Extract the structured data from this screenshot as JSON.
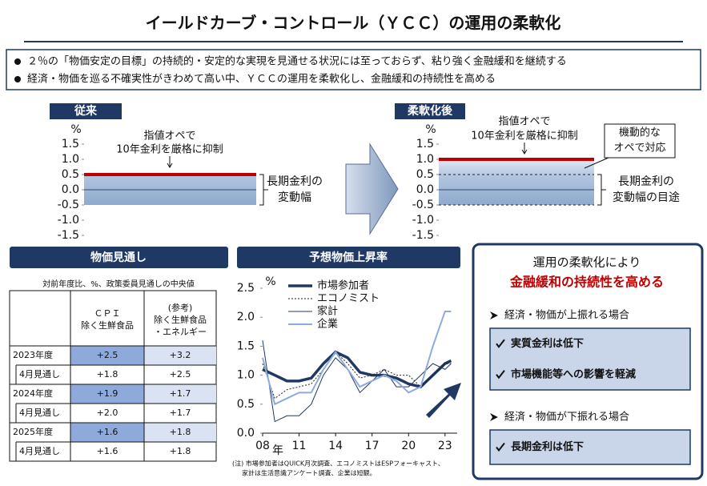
{
  "title": "イールドカーブ・コントロール（ＹＣＣ）の運用の柔軟化",
  "bullets": [
    "２％の「物価安定の目標」の持続的・安定的な実現を見通せる状況には至っておらず、粘り強く金融緩和を継続する",
    "経済・物価を巡る不確実性がきわめて高い中、ＹＣＣの運用を柔軟化し、金融緩和の持続性を高める"
  ],
  "before": {
    "label": "従来",
    "unit": "%",
    "ylim": [
      -1.5,
      1.5
    ],
    "yticks": [
      1.5,
      {
        "value": 1,
        "label": "1.0"
      },
      0.5,
      {
        "value": 0,
        "label": "0.0"
      },
      -0.5,
      {
        "value": -1,
        "label": "-1.0"
      },
      -1.5
    ],
    "band": [
      -0.5,
      0.5
    ],
    "cap": 0.5,
    "note": [
      "指値オペで",
      "10年金利を厳格に抑制"
    ],
    "range_label": [
      "長期金利の",
      "変動幅"
    ]
  },
  "after": {
    "label": "柔軟化後",
    "unit": "%",
    "ylim": [
      -1.5,
      1.5
    ],
    "yticks": [
      1.5,
      {
        "value": 1,
        "label": "1.0"
      },
      0.5,
      {
        "value": 0,
        "label": "0.0"
      },
      -0.5,
      {
        "value": -1,
        "label": "-1.0"
      },
      -1.5
    ],
    "band": [
      -0.5,
      0.5
    ],
    "cap": 1.0,
    "note": [
      "指値オペで",
      "10年金利を厳格に抑制"
    ],
    "side_note": [
      "機動的な",
      "オペで対応"
    ],
    "range_label": [
      "長期金利の",
      "変動幅の目途"
    ]
  },
  "outlook": {
    "title": "物価見通し",
    "caption": "対前年度比、%、政策委員見通しの中央値",
    "columns": [
      [
        "ＣＰＩ",
        "除く生鮮食品"
      ],
      [
        "(参考)",
        "除く生鮮食品",
        "・エネルギー"
      ]
    ],
    "rows": [
      [
        "2023年度",
        "+2.5",
        "+3.2"
      ],
      [
        "4月見通し",
        "+1.8",
        "+2.5"
      ],
      [
        "2024年度",
        "+1.9",
        "+1.7"
      ],
      [
        "4月見通し",
        "+2.0",
        "+1.7"
      ],
      [
        "2025年度",
        "+1.6",
        "+1.8"
      ],
      [
        "4月見通し",
        "+1.6",
        "+1.8"
      ]
    ]
  },
  "chart_data": {
    "type": "line",
    "title": "予想物価上昇率",
    "y_unit": "%",
    "x_unit": "年",
    "x": [
      2008,
      2009,
      2010,
      2011,
      2012,
      2013,
      2014,
      2015,
      2016,
      2017,
      2018,
      2019,
      2020,
      2021,
      2022,
      2023,
      2023.5
    ],
    "xlim": [
      2008,
      2024
    ],
    "xticks": [
      {
        "value": 2008,
        "label": "08"
      },
      {
        "value": 2011,
        "label": "11"
      },
      {
        "value": 2014,
        "label": "14"
      },
      {
        "value": 2017,
        "label": "17"
      },
      {
        "value": 2020,
        "label": "20"
      },
      {
        "value": 2023,
        "label": "23"
      }
    ],
    "ylim": [
      0,
      2.5
    ],
    "yticks": [
      {
        "value": 0,
        "label": "0.0"
      },
      0.5,
      {
        "value": 1,
        "label": "1.0"
      },
      1.5,
      {
        "value": 2,
        "label": "2.0"
      },
      2.5
    ],
    "series": [
      {
        "name": "市場参加者",
        "color": "#1f3864",
        "width": 3.5,
        "dashed": false,
        "values": [
          1.1,
          1.0,
          0.9,
          0.9,
          0.95,
          1.2,
          1.4,
          1.3,
          1.05,
          1.0,
          1.0,
          0.95,
          0.85,
          0.8,
          1.0,
          1.2,
          1.25
        ]
      },
      {
        "name": "エコノミスト",
        "color": "#222222",
        "width": 1,
        "dashed": true,
        "values": [
          1.2,
          0.6,
          0.75,
          0.8,
          0.85,
          1.1,
          1.4,
          1.2,
          0.95,
          1.0,
          1.1,
          1.0,
          1.0,
          0.8,
          1.0,
          1.2,
          1.2
        ]
      },
      {
        "name": "家計",
        "color": "#1f3864",
        "width": 1,
        "dashed": false,
        "values": [
          1.6,
          0.2,
          0.3,
          0.3,
          0.5,
          1.0,
          1.3,
          1.1,
          0.7,
          0.9,
          1.1,
          0.8,
          0.8,
          1.0,
          1.2,
          1.1,
          1.2
        ]
      },
      {
        "name": "企業",
        "color": "#8faadc",
        "width": 2,
        "dashed": false,
        "values": [
          1.3,
          0.5,
          0.6,
          0.7,
          0.7,
          1.1,
          1.4,
          1.1,
          0.8,
          0.9,
          1.0,
          0.9,
          0.7,
          0.8,
          1.5,
          2.1,
          2.1
        ]
      }
    ],
    "note": [
      "(注) 市場参加者はQUICK月次調査、エコノミストはESPフォーキャスト、",
      "家計は生活意識アンケート調査、企業は短観。"
    ]
  },
  "summary": {
    "lead": "運用の柔軟化により",
    "headline": "金融緩和の持続性を高める",
    "cases": [
      {
        "title": "経済・物価が上振れる場合",
        "points": [
          "実質金利は低下",
          "市場機能等への影響を軽減"
        ]
      },
      {
        "title": "経済・物価が下振れる場合",
        "points": [
          "長期金利は低下"
        ]
      }
    ]
  }
}
